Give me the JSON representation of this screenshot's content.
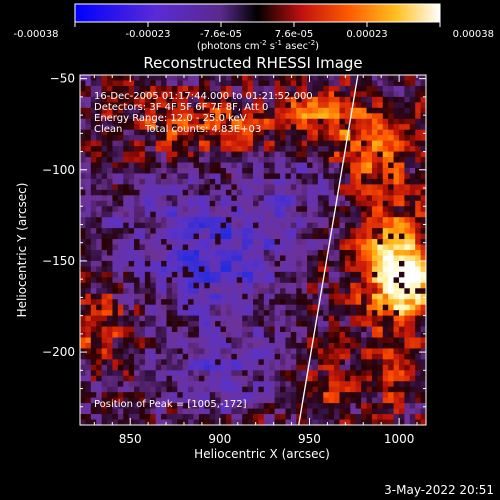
{
  "colorbar": {
    "ticks": [
      "-0.00038",
      "-0.00023",
      "-7.6e-05",
      "7.6e-05",
      "0.00023",
      "0.00038"
    ],
    "units_main": "(photons cm",
    "units_sup1": "-2",
    "units_mid1": " s",
    "units_sup2": "-1",
    "units_mid2": " asec",
    "units_sup3": "-2",
    "units_end": ")",
    "range": [
      -0.00038,
      0.00038
    ]
  },
  "chart_data": {
    "type": "heatmap",
    "title": "Reconstructed RHESSI Image",
    "xlabel": "Heliocentric X (arcsec)",
    "ylabel": "Heliocentric Y (arcsec)",
    "xlim": [
      822,
      1015
    ],
    "ylim": [
      -240,
      -48
    ],
    "xticks": [
      850,
      900,
      950,
      1000
    ],
    "yticks": [
      -50,
      -100,
      -150,
      -200
    ],
    "xtick_labels": [
      "850",
      "900",
      "950",
      "1000"
    ],
    "ytick_labels": [
      "−50",
      "−100",
      "−150",
      "−200"
    ],
    "annotations": {
      "time": "16-Dec-2005 01:17:44.000 to 01:21:52.000",
      "detectors": "Detectors: 3F 4F 5F 6F 7F 8F, Att 0",
      "energy": "Energy Range: 12.0 - 25.0 keV",
      "clean_label": "Clean",
      "total_counts": "Total counts: 4.83E+03",
      "peak": "Position of Peak = [1005,-172]"
    },
    "peak_position": [
      1005,
      -172
    ],
    "limb_line": [
      [
        944,
        -240
      ],
      [
        977,
        -48
      ]
    ],
    "colormap": "rhessi-bipolar (blue-purple-black-red-orange-yellow-white)"
  },
  "footer": {
    "date": "3-May-2022 20:51"
  }
}
